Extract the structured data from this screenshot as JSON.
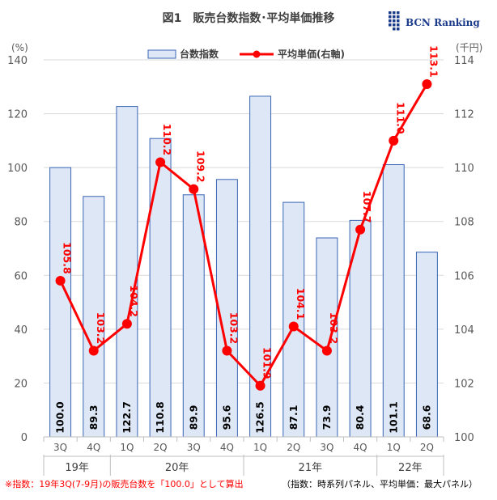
{
  "chart_data": {
    "type": "bar+line",
    "title": "図1　販売台数指数･平均単価推移",
    "categories": [
      "3Q",
      "4Q",
      "1Q",
      "2Q",
      "3Q",
      "4Q",
      "1Q",
      "2Q",
      "3Q",
      "4Q",
      "1Q",
      "2Q"
    ],
    "year_groups": [
      {
        "label": "19年",
        "count": 2
      },
      {
        "label": "20年",
        "count": 4
      },
      {
        "label": "21年",
        "count": 4
      },
      {
        "label": "22年",
        "count": 2
      }
    ],
    "series": [
      {
        "name": "台数指数",
        "type": "bar",
        "axis": "left",
        "values": [
          100.0,
          89.3,
          122.7,
          110.8,
          89.9,
          95.6,
          126.5,
          87.1,
          73.9,
          80.4,
          101.1,
          68.6
        ],
        "labels": [
          "100.0",
          "89.3",
          "122.7",
          "110.8",
          "89.9",
          "95.6",
          "126.5",
          "87.1",
          "73.9",
          "80.4",
          "101.1",
          "68.6"
        ]
      },
      {
        "name": "平均単価(右軸)",
        "type": "line",
        "axis": "right",
        "values": [
          105.8,
          103.2,
          104.2,
          110.2,
          109.2,
          103.2,
          101.9,
          104.1,
          103.2,
          107.7,
          111.0,
          113.1
        ],
        "labels": [
          "105.8",
          "103.2",
          "104.2",
          "110.2",
          "109.2",
          "103.2",
          "101.9",
          "104.1",
          "103.2",
          "107.7",
          "111.0",
          "113.1"
        ]
      }
    ],
    "y_left": {
      "unit": "(%)",
      "min": 0,
      "max": 140,
      "step": 20
    },
    "y_right": {
      "unit": "(千円)",
      "min": 100,
      "max": 114,
      "step": 2
    },
    "grid": true,
    "legend_position": "top",
    "colors": {
      "bar_fill": "#dde7f6",
      "bar_stroke": "#3a64b4",
      "line": "#ff0000",
      "grid": "#d9d9d9"
    }
  },
  "brand": {
    "name": "BCN Ranking"
  },
  "footnote": {
    "red": "※指数：19年3Q(7-9月)の販売台数を「100.0」として算出",
    "black": "（指数：時系列パネル、平均単価：最大パネル）"
  }
}
